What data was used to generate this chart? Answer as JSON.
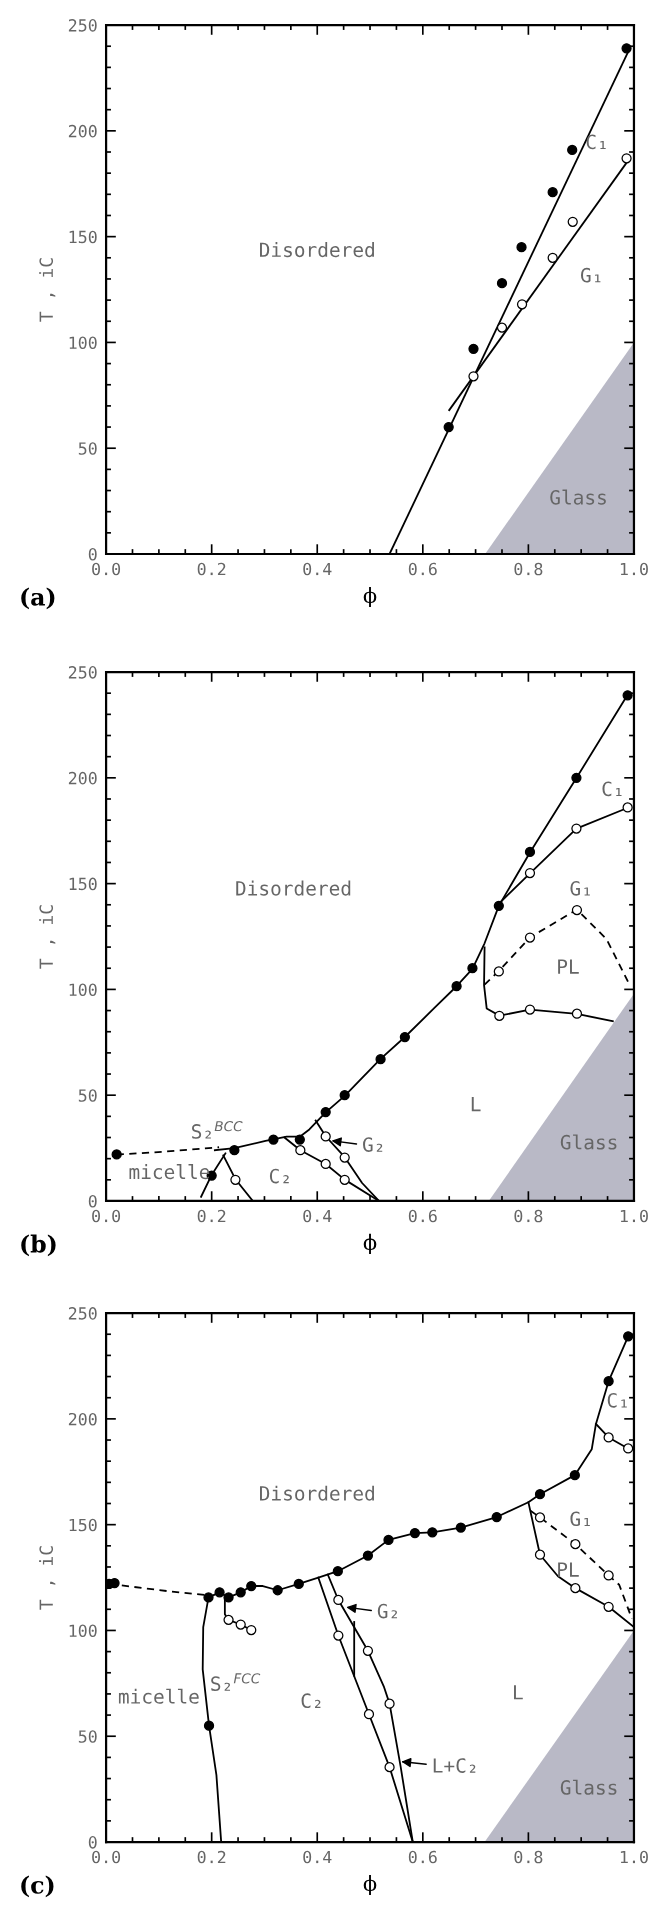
{
  "chart_data": [
    {
      "type": "line",
      "xlabel": "ϕ",
      "ylabel": "T , iC",
      "xlim": [
        0,
        1
      ],
      "ylim": [
        0,
        250
      ],
      "xticks": [
        {
          "value": 0,
          "label": "0.0"
        },
        {
          "value": 0.2,
          "label": "0.2"
        },
        {
          "value": 0.4,
          "label": "0.4"
        },
        {
          "value": 0.6,
          "label": "0.6"
        },
        {
          "value": 0.8,
          "label": "0.8"
        },
        {
          "value": 1,
          "label": "1.0"
        }
      ],
      "yticks": [
        0,
        50,
        100,
        150,
        200,
        250
      ],
      "series": [
        {
          "type": "area",
          "x": [
            0.718,
            1.0
          ],
          "values": [
            0,
            100
          ],
          "color": "#b9b9c6"
        },
        {
          "type": "line",
          "line_style": "solid",
          "color": "#000000",
          "x": [
            0.537,
            0.992
          ],
          "values": [
            0,
            239
          ]
        },
        {
          "type": "line",
          "line_style": "solid",
          "color": "#000000",
          "x": [
            0.65,
            0.992
          ],
          "values": [
            68,
            187
          ]
        },
        {
          "type": "scatter",
          "marker": "circle",
          "color": "#000000",
          "x": [
            0.649,
            0.696,
            0.75,
            0.787,
            0.846,
            0.883,
            0.986
          ],
          "values": [
            60,
            97,
            128,
            145,
            171,
            191,
            239
          ]
        },
        {
          "type": "scatter",
          "marker": "circle",
          "color": "#ffffff",
          "x": [
            0.696,
            0.75,
            0.788,
            0.846,
            0.884,
            0.986
          ],
          "values": [
            84,
            107,
            118,
            140,
            157,
            187
          ]
        }
      ],
      "annotations": [
        "(a)",
        "Disordered",
        "C₁",
        "G₁",
        "Glass"
      ]
    },
    {
      "type": "line",
      "xlabel": "ϕ",
      "ylabel": "T , iC",
      "xlim": [
        0,
        1
      ],
      "ylim": [
        0,
        250
      ],
      "xticks": [
        {
          "value": 0,
          "label": "0.0"
        },
        {
          "value": 0.2,
          "label": "0.2"
        },
        {
          "value": 0.4,
          "label": "0.4"
        },
        {
          "value": 0.6,
          "label": "0.6"
        },
        {
          "value": 0.8,
          "label": "0.8"
        },
        {
          "value": 1,
          "label": "1.0"
        }
      ],
      "yticks": [
        0,
        50,
        100,
        150,
        200,
        250
      ],
      "series": [
        {
          "type": "area",
          "x": [
            0.725,
            1.0
          ],
          "values": [
            0,
            98
          ],
          "color": "#b9b9c6"
        },
        {
          "type": "line",
          "line_style": "solid",
          "color": "#000000",
          "x": [
            0.206,
            0.243,
            0.302,
            0.342,
            0.367,
            0.385,
            0.416,
            0.452,
            0.52,
            0.566,
            0.621,
            0.664,
            0.694,
            0.717,
            0.744,
            0.803,
            0.891,
            0.988
          ],
          "values": [
            24,
            25,
            28.4,
            30.4,
            30.4,
            33.8,
            41.9,
            49.7,
            67.2,
            77.5,
            91,
            101.5,
            109.7,
            121.8,
            139.5,
            164.7,
            199.9,
            239.3
          ]
        },
        {
          "type": "line",
          "line_style": "dashed",
          "color": "#000000",
          "x": [
            0.02,
            0.11,
            0.214
          ],
          "values": [
            21.9,
            23.3,
            25.4
          ]
        },
        {
          "type": "line",
          "line_style": "solid",
          "color": "#000000",
          "x": [
            0.18,
            0.2,
            0.226
          ],
          "values": [
            2,
            12.3,
            22.5
          ]
        },
        {
          "type": "line",
          "line_style": "solid",
          "color": "#000000",
          "x": [
            0.222,
            0.245,
            0.278
          ],
          "values": [
            21.5,
            10.3,
            0
          ]
        },
        {
          "type": "line",
          "line_style": "solid",
          "color": "#000000",
          "x": [
            0.338,
            0.368,
            0.416,
            0.452,
            0.517
          ],
          "values": [
            30,
            24,
            17.5,
            10.1,
            0
          ]
        },
        {
          "type": "line",
          "line_style": "solid",
          "color": "#000000",
          "x": [
            0.397,
            0.416,
            0.452,
            0.485,
            0.517
          ],
          "values": [
            38,
            30.6,
            20.7,
            8.5,
            0
          ]
        },
        {
          "type": "line",
          "line_style": "solid",
          "color": "#000000",
          "x": [
            0.746,
            0.803,
            0.891,
            0.988
          ],
          "values": [
            141,
            154.8,
            176,
            185.8
          ]
        },
        {
          "type": "line",
          "line_style": "solid",
          "color": "#000000",
          "x": [
            0.717,
            0.716,
            0.721,
            0.745,
            0.803,
            0.892,
            0.96
          ],
          "values": [
            119.8,
            102,
            91,
            87.6,
            90.4,
            88.4,
            85
          ]
        },
        {
          "type": "line",
          "line_style": "dashed",
          "color": "#000000",
          "x": [
            0.717,
            0.744,
            0.803,
            0.892,
            0.948,
            0.992
          ],
          "values": [
            102.3,
            108.7,
            124.6,
            137.7,
            123.8,
            102
          ]
        },
        {
          "type": "scatter",
          "marker": "circle",
          "color": "#000000",
          "x": [
            0.02,
            0.2,
            0.243,
            0.317,
            0.367,
            0.416,
            0.452,
            0.52,
            0.566,
            0.664,
            0.694,
            0.744,
            0.803,
            0.891,
            0.988
          ],
          "values": [
            22,
            12,
            24,
            29,
            29,
            42,
            50,
            67,
            77.5,
            101.5,
            110,
            139.5,
            165,
            200,
            239
          ]
        },
        {
          "type": "scatter",
          "marker": "circle",
          "color": "#ffffff",
          "x": [
            0.245,
            0.368,
            0.416,
            0.416,
            0.452,
            0.452,
            0.745,
            0.803,
            0.892,
            0.744,
            0.803,
            0.892,
            0.803,
            0.891,
            0.988
          ],
          "values": [
            10,
            24,
            30.5,
            17.5,
            20.5,
            10,
            87.5,
            90.5,
            88.5,
            108.5,
            124.5,
            137.5,
            155,
            176,
            186
          ]
        }
      ],
      "annotations": [
        "(b)",
        "Disordered",
        "C₁",
        "G₁",
        "PL",
        "L",
        "Glass",
        "S₂$^{BCC}$",
        "micelle",
        "C₂",
        {
          "text": "G₂",
          "x": 0.427,
          "y": 28.5
        }
      ]
    },
    {
      "type": "line",
      "xlabel": "ϕ",
      "ylabel": "T , iC",
      "xlim": [
        0,
        1
      ],
      "ylim": [
        0,
        250
      ],
      "xticks": [
        {
          "value": 0,
          "label": "0.0"
        },
        {
          "value": 0.2,
          "label": "0.2"
        },
        {
          "value": 0.4,
          "label": "0.4"
        },
        {
          "value": 0.6,
          "label": "0.6"
        },
        {
          "value": 0.8,
          "label": "0.8"
        },
        {
          "value": 1,
          "label": "1.0"
        }
      ],
      "yticks": [
        0,
        50,
        100,
        150,
        200,
        250
      ],
      "series": [
        {
          "type": "area",
          "x": [
            0.717,
            1.0
          ],
          "values": [
            0,
            100
          ],
          "color": "#b9b9c6"
        },
        {
          "type": "line",
          "line_style": "dashed",
          "color": "#000000",
          "x": [
            0.006,
            0.116,
            0.194
          ],
          "values": [
            122,
            118.6,
            116.6
          ]
        },
        {
          "type": "line",
          "line_style": "solid",
          "color": "#000000",
          "x": [
            0.194,
            0.215,
            0.232,
            0.255,
            0.275,
            0.297,
            0.325,
            0.365,
            0.402,
            0.439,
            0.496,
            0.535,
            0.585,
            0.618,
            0.672,
            0.74,
            0.8,
            0.822,
            0.888,
            0.92,
            0.928,
            0.952,
            0.989
          ],
          "values": [
            115.6,
            118,
            115.6,
            118,
            121,
            121,
            119,
            122,
            125,
            128,
            135.4,
            142.8,
            146,
            146.4,
            148.6,
            153.6,
            160.6,
            164.4,
            173.4,
            185.6,
            197.6,
            217.8,
            239
          ]
        },
        {
          "type": "line",
          "line_style": "solid",
          "color": "#000000",
          "x": [
            0.194,
            0.184,
            0.183,
            0.195,
            0.209,
            0.218
          ],
          "values": [
            115.6,
            101.6,
            81.6,
            55,
            31.6,
            0
          ]
        },
        {
          "type": "line",
          "line_style": "solid",
          "color": "#000000",
          "x": [
            0.225,
            0.225,
            0.232,
            0.255,
            0.275
          ],
          "values": [
            115.6,
            107.6,
            105,
            102.8,
            100.2
          ]
        },
        {
          "type": "line",
          "line_style": "solid",
          "color": "#000000",
          "x": [
            0.402,
            0.44,
            0.498,
            0.537,
            0.581
          ],
          "values": [
            125,
            97.6,
            60.4,
            35.4,
            0
          ]
        },
        {
          "type": "line",
          "line_style": "solid",
          "color": "#000000",
          "x": [
            0.42,
            0.44,
            0.496,
            0.526,
            0.537,
            0.558,
            0.581
          ],
          "values": [
            126.4,
            114.4,
            90.4,
            73.6,
            65.4,
            35.6,
            0
          ]
        },
        {
          "type": "line",
          "line_style": "solid",
          "color": "#000000",
          "x": [
            0.47,
            0.47
          ],
          "values": [
            104,
            78.6
          ]
        },
        {
          "type": "line",
          "line_style": "solid",
          "color": "#000000",
          "x": [
            0.928,
            0.952,
            0.989
          ],
          "values": [
            197.6,
            191.2,
            186
          ]
        },
        {
          "type": "line",
          "line_style": "solid",
          "color": "#000000",
          "x": [
            0.8,
            0.822,
            0.856,
            0.889,
            0.952,
            1.0
          ],
          "values": [
            160.6,
            135.8,
            125.6,
            120,
            111.2,
            101.6
          ]
        },
        {
          "type": "line",
          "line_style": "dashed",
          "color": "#000000",
          "x": [
            0.804,
            0.822,
            0.889,
            0.952,
            0.972,
            0.996
          ],
          "values": [
            156.6,
            153.4,
            140.8,
            126,
            121.6,
            105.6
          ]
        },
        {
          "type": "scatter",
          "marker": "circle",
          "color": "#000000",
          "x": [
            0.006,
            0.016,
            0.194,
            0.215,
            0.232,
            0.255,
            0.275,
            0.325,
            0.365,
            0.439,
            0.496,
            0.535,
            0.585,
            0.618,
            0.672,
            0.74,
            0.822,
            0.888,
            0.952,
            0.989,
            0.195
          ],
          "values": [
            122,
            122.4,
            115.6,
            118,
            115.6,
            118,
            121,
            119,
            122,
            128,
            135.4,
            142.8,
            146,
            146.4,
            148.6,
            153.6,
            164.4,
            173.4,
            217.8,
            239,
            55
          ]
        },
        {
          "type": "scatter",
          "marker": "circle",
          "color": "#ffffff",
          "x": [
            0.232,
            0.255,
            0.275,
            0.44,
            0.44,
            0.496,
            0.537,
            0.498,
            0.537,
            0.822,
            0.822,
            0.889,
            0.889,
            0.952,
            0.952,
            0.952,
            0.989
          ],
          "values": [
            105,
            102.8,
            100.2,
            114.4,
            97.6,
            90.4,
            65.4,
            60.4,
            35.4,
            153.4,
            135.8,
            140.8,
            120,
            126,
            111.2,
            191.2,
            186
          ]
        }
      ],
      "annotations": [
        "(c)",
        "Disordered",
        "C₁",
        "G₁",
        "PL",
        "L",
        "Glass",
        "S₂$^{FCC}$",
        "micelle",
        "C₂",
        {
          "text": "G₂",
          "x": 0.455,
          "y": 111
        },
        {
          "text": "L+C₂",
          "x": 0.559,
          "y": 38
        }
      ]
    }
  ]
}
